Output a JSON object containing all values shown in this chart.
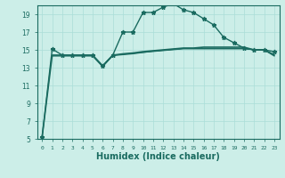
{
  "title": "",
  "xlabel": "Humidex (Indice chaleur)",
  "ylabel": "",
  "bg_color": "#cceee8",
  "grid_color": "#aaddd8",
  "line_color": "#1a6b60",
  "xlim": [
    -0.5,
    23.5
  ],
  "ylim": [
    5,
    20
  ],
  "yticks": [
    5,
    7,
    9,
    11,
    13,
    15,
    17,
    19
  ],
  "xticks": [
    0,
    1,
    2,
    3,
    4,
    5,
    6,
    7,
    8,
    9,
    10,
    11,
    12,
    13,
    14,
    15,
    16,
    17,
    18,
    19,
    20,
    21,
    22,
    23
  ],
  "xticklabels": [
    "0",
    "1",
    "2",
    "3",
    "4",
    "5",
    "6",
    "7",
    "8",
    "9",
    "10",
    "11",
    "12",
    "13",
    "14",
    "15",
    "16",
    "17",
    "18",
    "19",
    "20",
    "21",
    "22",
    "23"
  ],
  "series": [
    {
      "x": [
        0,
        1,
        2,
        3,
        4,
        5,
        6,
        7,
        8,
        9,
        10,
        11,
        12,
        13,
        14,
        15,
        16,
        17,
        18,
        19,
        20,
        21,
        22,
        23
      ],
      "y": [
        5.2,
        15.1,
        14.4,
        14.4,
        14.4,
        14.4,
        13.2,
        14.4,
        17.0,
        17.0,
        19.2,
        19.2,
        19.8,
        20.2,
        19.5,
        19.2,
        18.5,
        17.8,
        16.4,
        15.8,
        15.2,
        15.0,
        15.0,
        14.8
      ],
      "marker": "*",
      "markersize": 3.5,
      "linewidth": 1.0
    },
    {
      "x": [
        0,
        1,
        2,
        3,
        4,
        5,
        6,
        7,
        8,
        9,
        10,
        11,
        12,
        13,
        14,
        15,
        16,
        17,
        18,
        19,
        20,
        21,
        22,
        23
      ],
      "y": [
        5.2,
        14.4,
        14.4,
        14.4,
        14.4,
        14.4,
        13.2,
        14.4,
        14.55,
        14.65,
        14.8,
        14.9,
        15.0,
        15.1,
        15.2,
        15.2,
        15.3,
        15.3,
        15.3,
        15.3,
        15.3,
        15.0,
        15.0,
        14.4
      ],
      "marker": null,
      "markersize": 0,
      "linewidth": 1.2
    },
    {
      "x": [
        1,
        2,
        3,
        4,
        5,
        6,
        7,
        8,
        9,
        10,
        11,
        12,
        13,
        14,
        15,
        16,
        17,
        18,
        19,
        20,
        21,
        22,
        23
      ],
      "y": [
        14.3,
        14.3,
        14.3,
        14.3,
        14.3,
        13.1,
        14.35,
        14.45,
        14.55,
        14.7,
        14.85,
        14.95,
        15.05,
        15.15,
        15.15,
        15.15,
        15.15,
        15.15,
        15.15,
        15.15,
        15.0,
        15.0,
        14.3
      ],
      "marker": null,
      "markersize": 0,
      "linewidth": 0.8
    },
    {
      "x": [
        1,
        2,
        3,
        4,
        5,
        6,
        7,
        8,
        9,
        10,
        11,
        12,
        13,
        14,
        15,
        16,
        17,
        18,
        19,
        20,
        21,
        22,
        23
      ],
      "y": [
        14.4,
        14.4,
        14.4,
        14.4,
        14.4,
        13.2,
        14.4,
        14.5,
        14.6,
        14.7,
        14.8,
        14.9,
        15.0,
        15.1,
        15.1,
        15.1,
        15.1,
        15.1,
        15.1,
        15.1,
        15.0,
        15.0,
        14.5
      ],
      "marker": null,
      "markersize": 0,
      "linewidth": 0.6
    }
  ]
}
